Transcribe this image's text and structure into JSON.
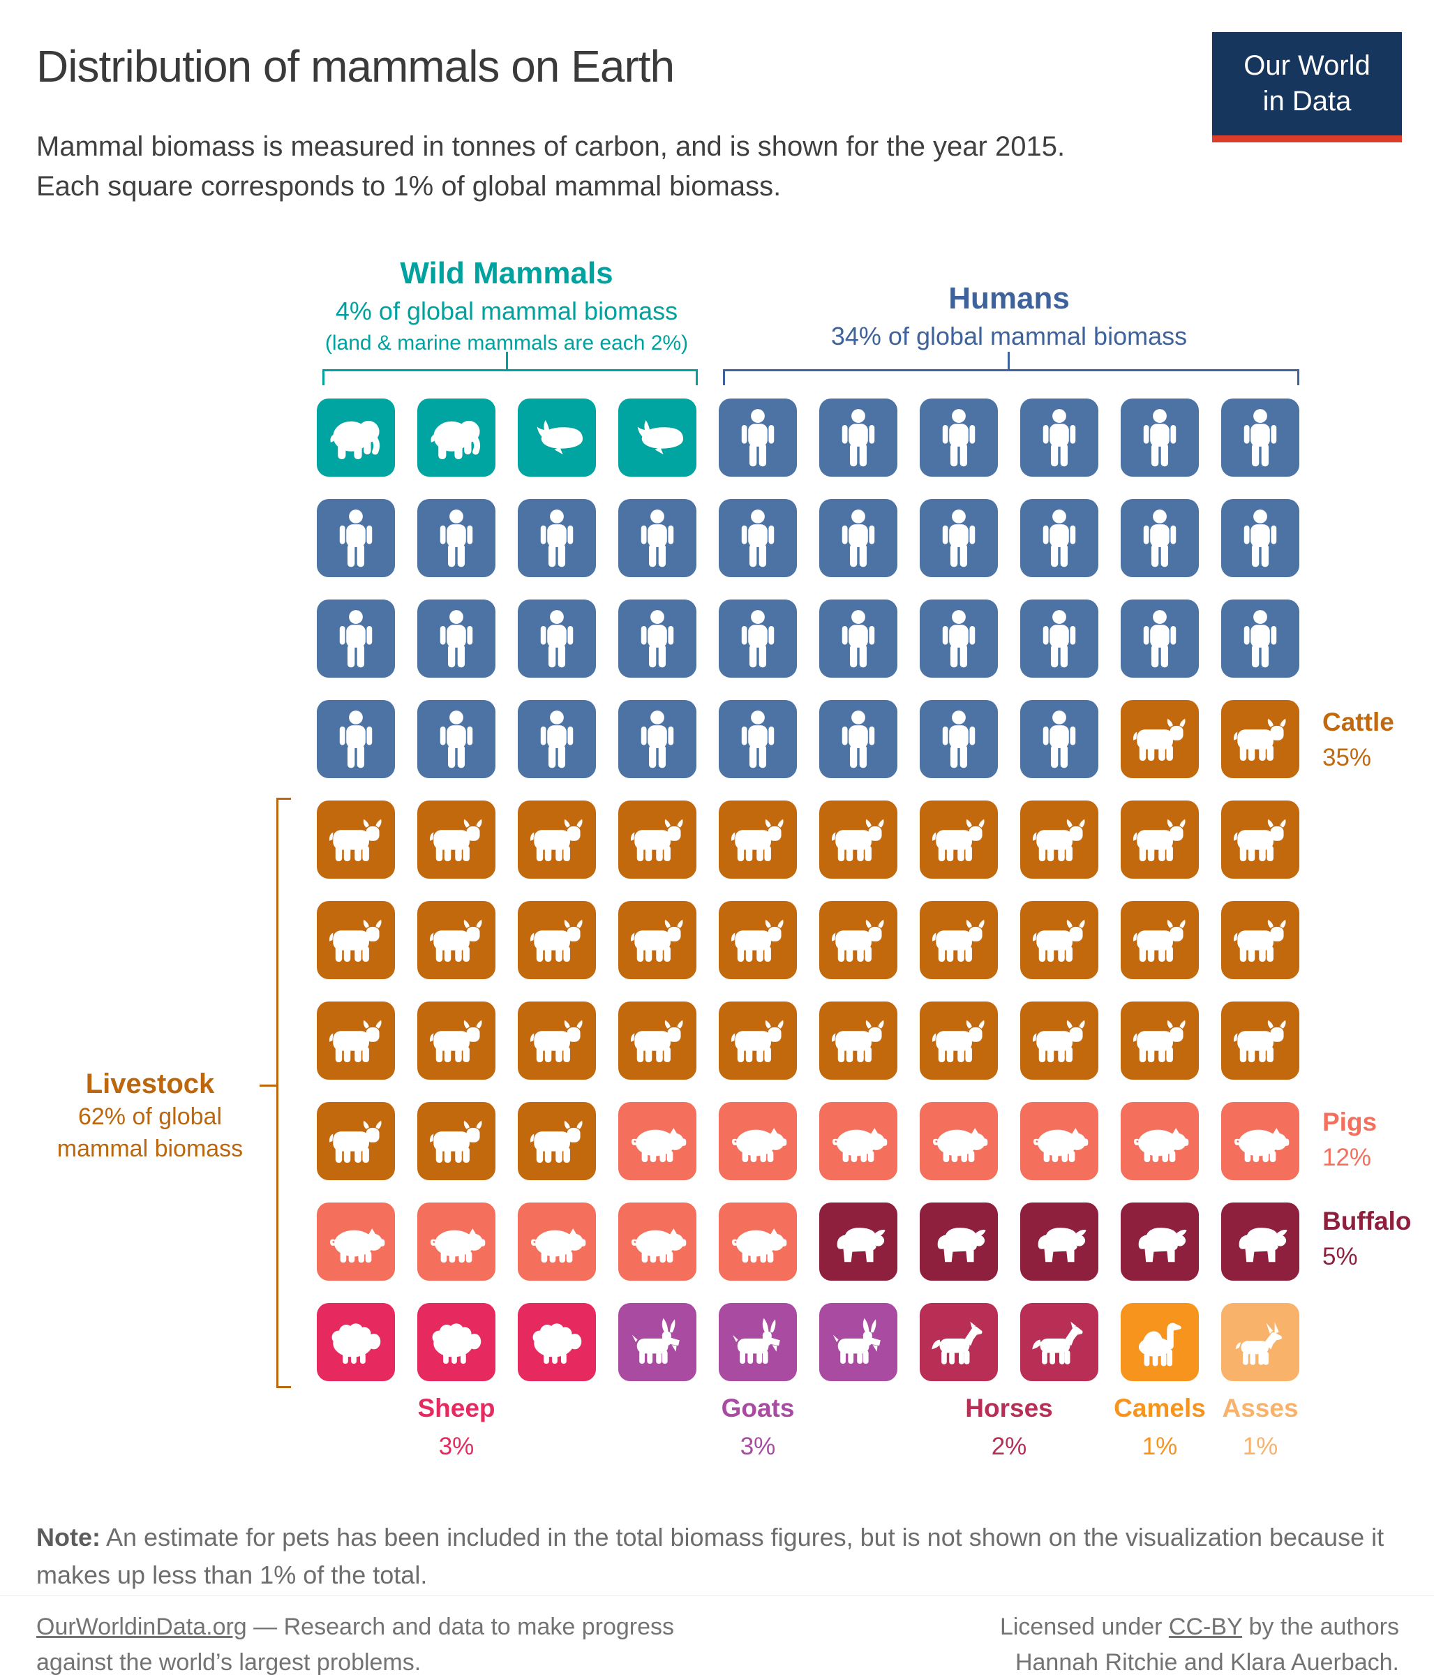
{
  "page": {
    "title": "Distribution of mammals on Earth",
    "subtitle": "Mammal biomass is measured in tonnes of carbon, and is shown for the year 2015. Each square corresponds to 1% of global mammal biomass."
  },
  "logo": {
    "line1": "Our World",
    "line2": "in Data"
  },
  "palette": {
    "wild": "#00a5a1",
    "humans": "#4d73a5",
    "cattle": "#c2690e",
    "pigs": "#f4705c",
    "buffalo": "#8e203d",
    "sheep": "#e62a5f",
    "goats": "#a94ba1",
    "horses": "#b92e55",
    "camels": "#f7941e",
    "asses": "#f9b26a",
    "wild_text": "#00a2a0",
    "humans_text": "#3e639c",
    "livestock_text": "#bc660d",
    "logo_bg": "#17365d",
    "logo_accent": "#dc3c2a"
  },
  "groups": {
    "wild": {
      "title": "Wild Mammals",
      "subtitle": "4% of global mammal biomass",
      "subtitle2": "(land & marine mammals are each 2%)"
    },
    "humans": {
      "title": "Humans",
      "subtitle": "34% of global mammal biomass"
    },
    "livestock": {
      "title": "Livestock",
      "subtitle_line1": "62% of global",
      "subtitle_line2": "mammal biomass"
    }
  },
  "side_labels": {
    "cattle": {
      "title": "Cattle",
      "pct": "35%"
    },
    "pigs": {
      "title": "Pigs",
      "pct": "12%"
    },
    "buffalo": {
      "title": "Buffalo",
      "pct": "5%"
    }
  },
  "bottom_labels": [
    {
      "title": "Sheep",
      "pct": "3%"
    },
    {
      "title": "Goats",
      "pct": "3%"
    },
    {
      "title": "Horses",
      "pct": "2%"
    },
    {
      "title": "Camels",
      "pct": "1%"
    },
    {
      "title": "Asses",
      "pct": "1%"
    }
  ],
  "grid": {
    "cells": [
      {
        "icon": "elephant",
        "category": "wild",
        "count": 2
      },
      {
        "icon": "whale",
        "category": "wild",
        "count": 2
      },
      {
        "icon": "person",
        "category": "humans",
        "count": 34
      },
      {
        "icon": "cattle",
        "category": "cattle",
        "count": 35
      },
      {
        "icon": "pig",
        "category": "pigs",
        "count": 12
      },
      {
        "icon": "buffalo",
        "category": "buffalo",
        "count": 5
      },
      {
        "icon": "sheep",
        "category": "sheep",
        "count": 3
      },
      {
        "icon": "goat",
        "category": "goats",
        "count": 3
      },
      {
        "icon": "horse",
        "category": "horses",
        "count": 2
      },
      {
        "icon": "camel",
        "category": "camels",
        "count": 1
      },
      {
        "icon": "ass",
        "category": "asses",
        "count": 1
      }
    ]
  },
  "chart_data": {
    "type": "waffle",
    "title": "Distribution of mammals on Earth",
    "subtitle": "Mammal biomass is measured in tonnes of carbon, and is shown for the year 2015. Each square corresponds to 1% of global mammal biomass.",
    "year": "2015",
    "unit": "% of global mammal biomass (tonnes of carbon)",
    "grid": "10x10",
    "square_value_pct": 1,
    "groups": [
      {
        "name": "Wild Mammals",
        "value_pct": 4,
        "annotation": "land & marine mammals are each 2%",
        "segments": [
          {
            "name": "Wild land mammals",
            "value_pct": 2,
            "icon": "elephant"
          },
          {
            "name": "Wild marine mammals",
            "value_pct": 2,
            "icon": "whale"
          }
        ]
      },
      {
        "name": "Humans",
        "value_pct": 34,
        "icon": "person"
      },
      {
        "name": "Livestock",
        "value_pct": 62,
        "segments": [
          {
            "name": "Cattle",
            "value_pct": 35,
            "icon": "cattle"
          },
          {
            "name": "Pigs",
            "value_pct": 12,
            "icon": "pig"
          },
          {
            "name": "Buffalo",
            "value_pct": 5,
            "icon": "buffalo"
          },
          {
            "name": "Sheep",
            "value_pct": 3,
            "icon": "sheep"
          },
          {
            "name": "Goats",
            "value_pct": 3,
            "icon": "goat"
          },
          {
            "name": "Horses",
            "value_pct": 2,
            "icon": "horse"
          },
          {
            "name": "Camels",
            "value_pct": 1,
            "icon": "camel"
          },
          {
            "name": "Asses",
            "value_pct": 1,
            "icon": "ass"
          }
        ]
      }
    ]
  },
  "note": {
    "label": "Note:",
    "text": " An estimate for pets has been included in the total biomass figures, but is not shown on the visualization because it makes up less than 1% of the total."
  },
  "footer": {
    "left_link": "OurWorldinData.org",
    "left_after_link": " — Research and data to make progress",
    "left_line2": "against the world’s largest problems.",
    "right_before_link": "Licensed under ",
    "right_link": "CC-BY",
    "right_after_link": " by the authors",
    "right_line2": "Hannah Ritchie and Klara Auerbach."
  }
}
